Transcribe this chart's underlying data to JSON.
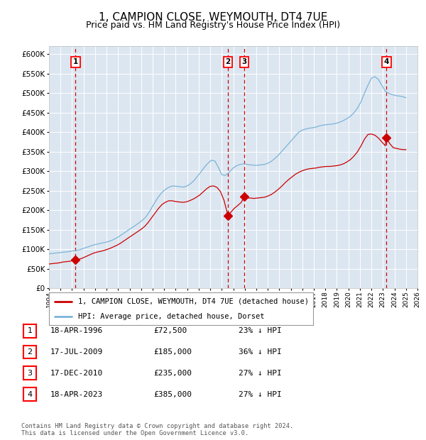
{
  "title": "1, CAMPION CLOSE, WEYMOUTH, DT4 7UE",
  "subtitle": "Price paid vs. HM Land Registry's House Price Index (HPI)",
  "title_fontsize": 11,
  "subtitle_fontsize": 9,
  "plot_bg_color": "#dce6f1",
  "outer_bg_color": "#ffffff",
  "hpi_color": "#7ab4d8",
  "price_color": "#cc0000",
  "grid_color": "#ffffff",
  "dashed_line_color": "#cc0000",
  "ylim": [
    0,
    620000
  ],
  "ytick_step": 50000,
  "x_start_year": 1994,
  "x_end_year": 2026,
  "legend_label_price": "1, CAMPION CLOSE, WEYMOUTH, DT4 7UE (detached house)",
  "legend_label_hpi": "HPI: Average price, detached house, Dorset",
  "transactions": [
    {
      "label": "1",
      "year": 1996.3,
      "price": 72500
    },
    {
      "label": "2",
      "year": 2009.55,
      "price": 185000
    },
    {
      "label": "3",
      "year": 2010.95,
      "price": 235000
    },
    {
      "label": "4",
      "year": 2023.3,
      "price": 385000
    }
  ],
  "transaction_table": [
    {
      "num": "1",
      "date": "18-APR-1996",
      "price": "£72,500",
      "hpi_diff": "23% ↓ HPI"
    },
    {
      "num": "2",
      "date": "17-JUL-2009",
      "price": "£185,000",
      "hpi_diff": "36% ↓ HPI"
    },
    {
      "num": "3",
      "date": "17-DEC-2010",
      "price": "£235,000",
      "hpi_diff": "27% ↓ HPI"
    },
    {
      "num": "4",
      "date": "18-APR-2023",
      "price": "£385,000",
      "hpi_diff": "27% ↓ HPI"
    }
  ],
  "footnote": "Contains HM Land Registry data © Crown copyright and database right 2024.\nThis data is licensed under the Open Government Licence v3.0.",
  "hpi_data_years": [
    1994.0,
    1994.3,
    1994.6,
    1994.9,
    1995.2,
    1995.5,
    1995.8,
    1996.1,
    1996.4,
    1996.7,
    1997.0,
    1997.3,
    1997.6,
    1997.9,
    1998.2,
    1998.5,
    1998.8,
    1999.1,
    1999.4,
    1999.7,
    2000.0,
    2000.3,
    2000.6,
    2000.9,
    2001.2,
    2001.5,
    2001.8,
    2002.1,
    2002.4,
    2002.7,
    2003.0,
    2003.3,
    2003.6,
    2003.9,
    2004.2,
    2004.5,
    2004.8,
    2005.1,
    2005.4,
    2005.7,
    2006.0,
    2006.3,
    2006.6,
    2006.9,
    2007.2,
    2007.5,
    2007.8,
    2008.1,
    2008.4,
    2008.7,
    2009.0,
    2009.3,
    2009.55,
    2009.8,
    2010.0,
    2010.3,
    2010.6,
    2010.95,
    2011.2,
    2011.5,
    2011.8,
    2012.1,
    2012.4,
    2012.7,
    2013.0,
    2013.3,
    2013.6,
    2013.9,
    2014.2,
    2014.5,
    2014.8,
    2015.1,
    2015.4,
    2015.7,
    2016.0,
    2016.3,
    2016.6,
    2016.9,
    2017.2,
    2017.5,
    2017.8,
    2018.1,
    2018.4,
    2018.7,
    2019.0,
    2019.3,
    2019.6,
    2019.9,
    2020.2,
    2020.5,
    2020.8,
    2021.1,
    2021.4,
    2021.7,
    2022.0,
    2022.3,
    2022.6,
    2022.9,
    2023.2,
    2023.3,
    2023.6,
    2023.9,
    2024.2,
    2024.5,
    2024.8,
    2025.0
  ],
  "hpi_values": [
    88000,
    89000,
    90000,
    91000,
    92000,
    93000,
    94000,
    96000,
    97000,
    99000,
    102000,
    105000,
    108000,
    111000,
    113000,
    115000,
    117000,
    119000,
    122000,
    126000,
    131000,
    137000,
    143000,
    149000,
    155000,
    161000,
    167000,
    174000,
    182000,
    195000,
    210000,
    225000,
    238000,
    248000,
    255000,
    260000,
    262000,
    261000,
    260000,
    259000,
    262000,
    268000,
    276000,
    287000,
    298000,
    310000,
    320000,
    328000,
    326000,
    310000,
    291000,
    289000,
    294000,
    302000,
    308000,
    314000,
    317000,
    319000,
    317000,
    316000,
    315000,
    315000,
    316000,
    317000,
    320000,
    325000,
    332000,
    340000,
    350000,
    360000,
    370000,
    380000,
    390000,
    400000,
    405000,
    408000,
    410000,
    411000,
    413000,
    416000,
    418000,
    419000,
    420000,
    421000,
    423000,
    426000,
    430000,
    435000,
    441000,
    450000,
    462000,
    478000,
    500000,
    520000,
    538000,
    542000,
    535000,
    520000,
    505000,
    503000,
    498000,
    495000,
    493000,
    492000,
    490000,
    488000
  ],
  "price_data_years": [
    1994.0,
    1994.3,
    1994.6,
    1994.9,
    1995.2,
    1995.5,
    1995.8,
    1996.1,
    1996.3,
    1996.6,
    1996.9,
    1997.2,
    1997.5,
    1997.8,
    1998.1,
    1998.4,
    1998.7,
    1999.0,
    1999.3,
    1999.6,
    1999.9,
    2000.2,
    2000.5,
    2000.8,
    2001.1,
    2001.4,
    2001.7,
    2002.0,
    2002.3,
    2002.6,
    2002.9,
    2003.2,
    2003.5,
    2003.8,
    2004.1,
    2004.4,
    2004.7,
    2005.0,
    2005.3,
    2005.6,
    2005.9,
    2006.2,
    2006.5,
    2006.8,
    2007.1,
    2007.4,
    2007.7,
    2008.0,
    2008.3,
    2008.6,
    2008.9,
    2009.2,
    2009.55,
    2009.8,
    2010.1,
    2010.4,
    2010.7,
    2010.95,
    2011.2,
    2011.5,
    2011.8,
    2012.1,
    2012.4,
    2012.7,
    2013.0,
    2013.3,
    2013.6,
    2013.9,
    2014.2,
    2014.5,
    2014.8,
    2015.1,
    2015.4,
    2015.7,
    2016.0,
    2016.3,
    2016.6,
    2016.9,
    2017.2,
    2017.5,
    2017.8,
    2018.1,
    2018.4,
    2018.7,
    2019.0,
    2019.3,
    2019.6,
    2019.9,
    2020.2,
    2020.5,
    2020.8,
    2021.1,
    2021.4,
    2021.7,
    2022.0,
    2022.3,
    2022.6,
    2022.9,
    2023.2,
    2023.3,
    2023.6,
    2023.9,
    2024.2,
    2024.5,
    2024.8,
    2025.0
  ],
  "price_values": [
    62000,
    63000,
    64000,
    65000,
    67000,
    68000,
    69000,
    71000,
    72500,
    74000,
    77000,
    81000,
    85000,
    89000,
    92000,
    94000,
    96000,
    99000,
    102000,
    106000,
    110000,
    115000,
    121000,
    127000,
    133000,
    139000,
    145000,
    151000,
    158000,
    168000,
    180000,
    192000,
    204000,
    214000,
    220000,
    224000,
    224000,
    222000,
    221000,
    220000,
    221000,
    224000,
    228000,
    233000,
    239000,
    247000,
    255000,
    261000,
    262000,
    258000,
    247000,
    225000,
    185000,
    195000,
    205000,
    212000,
    220000,
    235000,
    231000,
    231000,
    230000,
    231000,
    232000,
    233000,
    236000,
    240000,
    246000,
    253000,
    261000,
    270000,
    278000,
    285000,
    292000,
    297000,
    301000,
    304000,
    306000,
    307000,
    308000,
    310000,
    311000,
    312000,
    312000,
    313000,
    314000,
    316000,
    319000,
    324000,
    330000,
    339000,
    350000,
    365000,
    382000,
    394000,
    395000,
    392000,
    385000,
    375000,
    365000,
    385000,
    370000,
    360000,
    358000,
    356000,
    355000,
    355000
  ]
}
